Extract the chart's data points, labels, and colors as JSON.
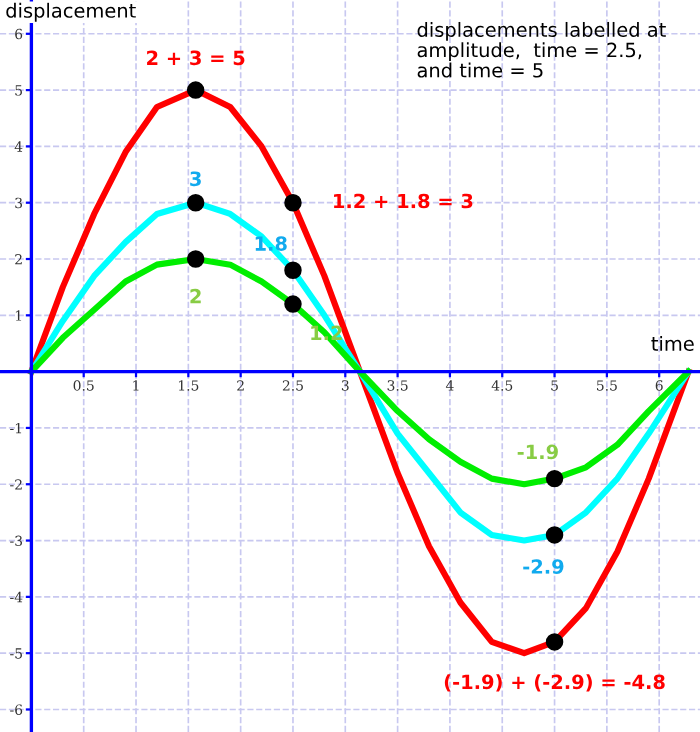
{
  "chart_data": {
    "type": "line",
    "xlabel": "time",
    "ylabel": "displacement",
    "x": [
      0,
      0.3,
      0.6,
      0.9,
      1.2,
      1.57,
      1.9,
      2.2,
      2.5,
      2.8,
      3.14,
      3.5,
      3.8,
      4.1,
      4.4,
      4.71,
      5.0,
      5.3,
      5.6,
      5.9,
      6.28
    ],
    "series": [
      {
        "color": "#ff0000",
        "values": [
          0,
          1.5,
          2.8,
          3.9,
          4.7,
          5,
          4.7,
          4.0,
          3.0,
          1.7,
          0,
          -1.8,
          -3.1,
          -4.1,
          -4.8,
          -5,
          -4.8,
          -4.2,
          -3.2,
          -1.9,
          0
        ]
      },
      {
        "color": "#00ffff",
        "values": [
          0,
          0.9,
          1.7,
          2.3,
          2.8,
          3,
          2.8,
          2.4,
          1.8,
          1.0,
          0,
          -1.1,
          -1.8,
          -2.5,
          -2.9,
          -3,
          -2.9,
          -2.5,
          -1.9,
          -1.1,
          0
        ]
      },
      {
        "color": "#00ee00",
        "values": [
          0,
          0.6,
          1.1,
          1.6,
          1.9,
          2,
          1.9,
          1.6,
          1.2,
          0.7,
          0,
          -0.7,
          -1.2,
          -1.6,
          -1.9,
          -2,
          -1.9,
          -1.7,
          -1.3,
          -0.7,
          0
        ]
      },
      {
        "type": "scatter",
        "marker": "circle",
        "color": "#000000",
        "x": [
          1.57,
          1.57,
          1.57,
          2.5,
          2.5,
          2.5,
          5,
          5,
          5
        ],
        "values": [
          5,
          3,
          2,
          3,
          1.8,
          1.2,
          -1.9,
          -2.9,
          -4.8
        ]
      }
    ],
    "annotations": [
      {
        "text": "2 + 3 = 5",
        "x": 1.57,
        "y": 5
      },
      {
        "text": "3",
        "x": 1.57,
        "y": 3
      },
      {
        "text": "2",
        "x": 1.57,
        "y": 2
      },
      {
        "text": "1.2 + 1.8 = 3",
        "x": 2.5,
        "y": 3
      },
      {
        "text": "1.8",
        "x": 2.5,
        "y": 1.8
      },
      {
        "text": "1.2",
        "x": 2.5,
        "y": 1.2
      },
      {
        "text": "-1.9",
        "x": 5,
        "y": -1.9
      },
      {
        "text": "-2.9",
        "x": 5,
        "y": -2.9
      },
      {
        "text": "(-1.9) + (-2.9) = -4.8",
        "x": 5,
        "y": -4.8
      },
      "displacements labelled at\namplitude,  time = 2.5,\nand time = 5"
    ],
    "xlim": [
      -0.3,
      6.39
    ],
    "ylim": [
      -6.4,
      6.6
    ],
    "xticks": [
      0.5,
      1,
      1.5,
      2,
      2.5,
      3,
      3.5,
      4,
      4.5,
      5,
      5.5,
      6
    ],
    "yticks": [
      -6,
      -5,
      -4,
      -3,
      -2,
      -1,
      1,
      2,
      3,
      4,
      5,
      6
    ],
    "grid": true,
    "marker": "none",
    "line_style": "solid"
  }
}
